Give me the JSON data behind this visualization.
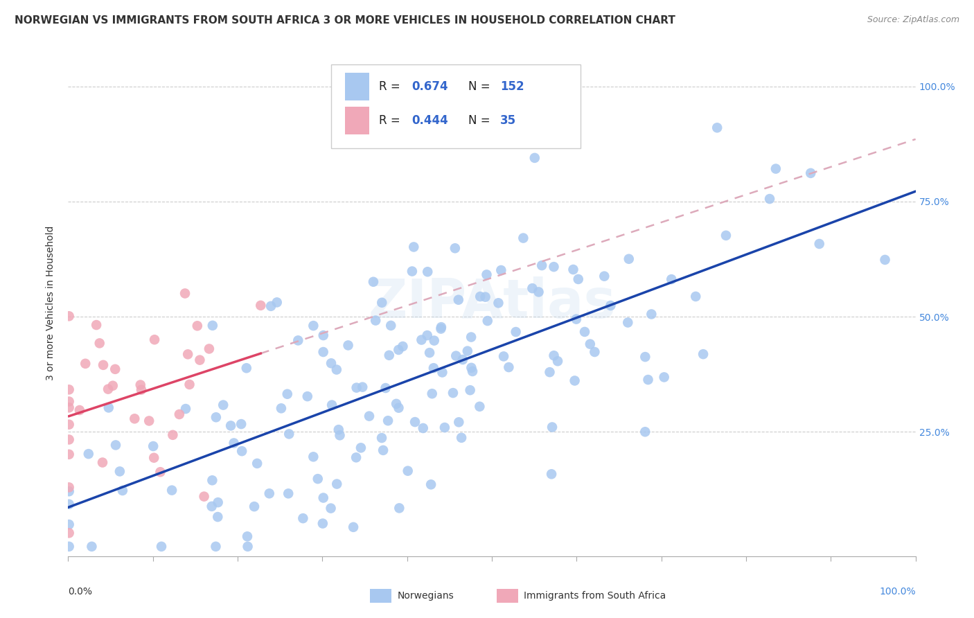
{
  "title": "NORWEGIAN VS IMMIGRANTS FROM SOUTH AFRICA 3 OR MORE VEHICLES IN HOUSEHOLD CORRELATION CHART",
  "source": "Source: ZipAtlas.com",
  "ylabel": "3 or more Vehicles in Household",
  "xlim": [
    0.0,
    1.0
  ],
  "ylim": [
    -0.02,
    1.08
  ],
  "xtick_labels": [
    "0.0%",
    "",
    "",
    "",
    "",
    "",
    "",
    "",
    "",
    "",
    "100.0%"
  ],
  "xtick_vals": [
    0.0,
    0.1,
    0.2,
    0.3,
    0.4,
    0.5,
    0.6,
    0.7,
    0.8,
    0.9,
    1.0
  ],
  "ytick_labels": [
    "25.0%",
    "50.0%",
    "75.0%",
    "100.0%"
  ],
  "ytick_vals": [
    0.25,
    0.5,
    0.75,
    1.0
  ],
  "norwegian_R": 0.674,
  "norwegian_N": 152,
  "sa_R": 0.444,
  "sa_N": 35,
  "norwegian_color": "#a8c8f0",
  "sa_color": "#f0a8b8",
  "norwegian_line_color": "#1a44aa",
  "sa_line_color": "#dd4466",
  "sa_dash_color": "#ddaabb",
  "watermark": "ZIPAtlas",
  "legend_labels": [
    "Norwegians",
    "Immigrants from South Africa"
  ],
  "background_color": "#ffffff",
  "grid_color": "#cccccc",
  "title_color": "#333333",
  "source_color": "#888888",
  "tick_color_right": "#4488dd",
  "title_fontsize": 11,
  "axis_label_fontsize": 10,
  "tick_fontsize": 10
}
